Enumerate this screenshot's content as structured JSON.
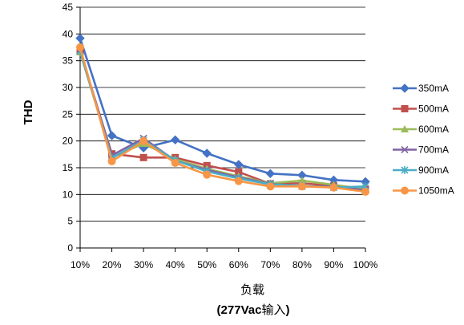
{
  "chart_data": {
    "type": "line",
    "ylabel": "THD",
    "xlabel_line1": "负载",
    "xlabel_line2_bold": "(277Vac",
    "xlabel_line2_normal": "输入",
    "xlabel_line2_end": ")",
    "categories": [
      "10%",
      "20%",
      "30%",
      "40%",
      "50%",
      "60%",
      "70%",
      "80%",
      "90%",
      "100%"
    ],
    "ylim": [
      0,
      45
    ],
    "yticks": [
      0,
      5,
      10,
      15,
      20,
      25,
      30,
      35,
      40,
      45
    ],
    "grid": "horizontal",
    "legend_position": "right",
    "series": [
      {
        "name": "350mA",
        "color": "#4472C4",
        "marker": "diamond",
        "values": [
          39.2,
          21.0,
          18.7,
          20.2,
          17.7,
          15.6,
          13.9,
          13.6,
          12.7,
          12.4
        ]
      },
      {
        "name": "500mA",
        "color": "#C0504D",
        "marker": "square",
        "values": [
          36.7,
          17.6,
          16.9,
          16.9,
          15.4,
          14.2,
          12.0,
          12.1,
          11.6,
          11.0
        ]
      },
      {
        "name": "600mA",
        "color": "#9BBB59",
        "marker": "triangle",
        "values": [
          36.6,
          17.0,
          19.5,
          16.6,
          14.8,
          13.4,
          12.1,
          12.6,
          11.8,
          11.0
        ]
      },
      {
        "name": "700mA",
        "color": "#8064A2",
        "marker": "x",
        "values": [
          37.0,
          17.3,
          20.5,
          16.3,
          14.6,
          13.2,
          12.0,
          11.5,
          11.5,
          10.8
        ]
      },
      {
        "name": "900mA",
        "color": "#4BACC6",
        "marker": "star",
        "values": [
          36.8,
          16.8,
          20.1,
          16.4,
          14.3,
          13.0,
          11.9,
          11.6,
          11.3,
          11.5
        ]
      },
      {
        "name": "1050mA",
        "color": "#F79646",
        "marker": "circle",
        "values": [
          37.5,
          16.2,
          20.0,
          15.9,
          13.7,
          12.5,
          11.5,
          11.5,
          11.3,
          10.5
        ]
      }
    ]
  }
}
